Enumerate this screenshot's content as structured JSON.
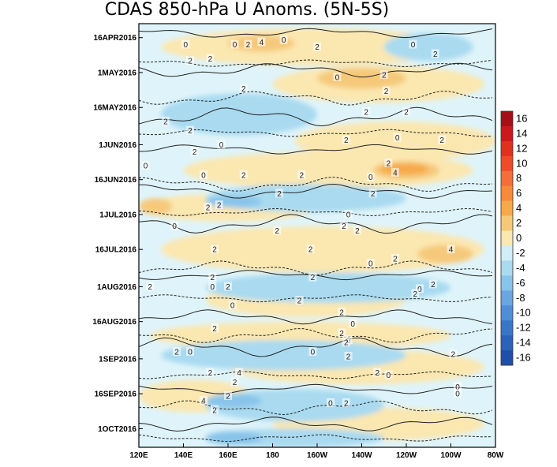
{
  "chart_data": {
    "type": "heatmap",
    "title": "CDAS 850-hPa U Anoms. (5N-5S)",
    "xlabel": "",
    "ylabel": "",
    "x_ticks": [
      "120E",
      "140E",
      "160E",
      "180",
      "160W",
      "140W",
      "120W",
      "100W",
      "80W"
    ],
    "y_ticks": [
      "16APR2016",
      "1MAY2016",
      "16MAY2016",
      "1JUN2016",
      "16JUN2016",
      "1JUL2016",
      "16JUL2016",
      "1AUG2016",
      "16AUG2016",
      "1SEP2016",
      "16SEP2016",
      "1OCT2016"
    ],
    "colorbar": {
      "labels": [
        "16",
        "14",
        "12",
        "10",
        "8",
        "6",
        "4",
        "2",
        "0",
        "-2",
        "-4",
        "-6",
        "-8",
        "-10",
        "-12",
        "-14",
        "-16"
      ],
      "colors": [
        "#a50f15",
        "#cb181d",
        "#e0301e",
        "#ef4a2a",
        "#f46d3b",
        "#f68b3c",
        "#f6a94a",
        "#f6c97a",
        "#fbe7b0",
        "#cfeef7",
        "#a9daf0",
        "#88c4ea",
        "#6aa6df",
        "#4f8ed4",
        "#3a76c6",
        "#2c63b8",
        "#1f4fa6"
      ]
    },
    "contour_labels": [
      {
        "lon": 141,
        "date": "2016-04-19",
        "value": "0"
      },
      {
        "lon": 163,
        "date": "2016-04-19",
        "value": "0"
      },
      {
        "lon": 169,
        "date": "2016-04-19",
        "value": "2"
      },
      {
        "lon": 175,
        "date": "2016-04-18",
        "value": "4"
      },
      {
        "lon": 185,
        "date": "2016-04-17",
        "value": "0"
      },
      {
        "lon": 200,
        "date": "2016-04-20",
        "value": "2"
      },
      {
        "lon": 243,
        "date": "2016-04-19",
        "value": "0"
      },
      {
        "lon": 253,
        "date": "2016-04-23",
        "value": "2"
      },
      {
        "lon": 152,
        "date": "2016-04-25",
        "value": "2"
      },
      {
        "lon": 143,
        "date": "2016-04-26",
        "value": "2"
      },
      {
        "lon": 209,
        "date": "2016-05-03",
        "value": "0"
      },
      {
        "lon": 230,
        "date": "2016-05-02",
        "value": "2"
      },
      {
        "lon": 231,
        "date": "2016-05-09",
        "value": "2"
      },
      {
        "lon": 167,
        "date": "2016-05-08",
        "value": "2"
      },
      {
        "lon": 222,
        "date": "2016-05-18",
        "value": "2"
      },
      {
        "lon": 240,
        "date": "2016-05-18",
        "value": "2"
      },
      {
        "lon": 132,
        "date": "2016-05-22",
        "value": "2"
      },
      {
        "lon": 143,
        "date": "2016-05-26",
        "value": "2"
      },
      {
        "lon": 213,
        "date": "2016-05-30",
        "value": "2"
      },
      {
        "lon": 236,
        "date": "2016-05-29",
        "value": "0"
      },
      {
        "lon": 256,
        "date": "2016-05-30",
        "value": "2"
      },
      {
        "lon": 157,
        "date": "2016-06-01",
        "value": "0"
      },
      {
        "lon": 145,
        "date": "2016-06-04",
        "value": "2"
      },
      {
        "lon": 123,
        "date": "2016-06-10",
        "value": "0"
      },
      {
        "lon": 149,
        "date": "2016-06-14",
        "value": "0"
      },
      {
        "lon": 167,
        "date": "2016-06-14",
        "value": "2"
      },
      {
        "lon": 193,
        "date": "2016-06-14",
        "value": "2"
      },
      {
        "lon": 232,
        "date": "2016-06-09",
        "value": "2"
      },
      {
        "lon": 235,
        "date": "2016-06-13",
        "value": "4"
      },
      {
        "lon": 224,
        "date": "2016-06-15",
        "value": "0"
      },
      {
        "lon": 183,
        "date": "2016-06-22",
        "value": "2"
      },
      {
        "lon": 225,
        "date": "2016-06-22",
        "value": "2"
      },
      {
        "lon": 156,
        "date": "2016-06-27",
        "value": "2"
      },
      {
        "lon": 151,
        "date": "2016-06-28",
        "value": "2"
      },
      {
        "lon": 214,
        "date": "2016-07-01",
        "value": "0"
      },
      {
        "lon": 136,
        "date": "2016-07-06",
        "value": "0"
      },
      {
        "lon": 182,
        "date": "2016-07-08",
        "value": "2"
      },
      {
        "lon": 212,
        "date": "2016-07-06",
        "value": "2"
      },
      {
        "lon": 218,
        "date": "2016-07-08",
        "value": "2"
      },
      {
        "lon": 154,
        "date": "2016-07-16",
        "value": "2"
      },
      {
        "lon": 197,
        "date": "2016-07-16",
        "value": "2"
      },
      {
        "lon": 224,
        "date": "2016-07-22",
        "value": "0"
      },
      {
        "lon": 235,
        "date": "2016-07-20",
        "value": "2"
      },
      {
        "lon": 260,
        "date": "2016-07-16",
        "value": "4"
      },
      {
        "lon": 153,
        "date": "2016-07-28",
        "value": "2"
      },
      {
        "lon": 198,
        "date": "2016-07-28",
        "value": "2"
      },
      {
        "lon": 125,
        "date": "2016-08-01",
        "value": "2"
      },
      {
        "lon": 153,
        "date": "2016-08-01",
        "value": "0"
      },
      {
        "lon": 160,
        "date": "2016-08-01",
        "value": "2"
      },
      {
        "lon": 246,
        "date": "2016-08-02",
        "value": "0"
      },
      {
        "lon": 252,
        "date": "2016-07-31",
        "value": "2"
      },
      {
        "lon": 192,
        "date": "2016-08-07",
        "value": "2"
      },
      {
        "lon": 244,
        "date": "2016-08-04",
        "value": "2"
      },
      {
        "lon": 162,
        "date": "2016-08-09",
        "value": "0"
      },
      {
        "lon": 211,
        "date": "2016-08-12",
        "value": "2"
      },
      {
        "lon": 216,
        "date": "2016-08-17",
        "value": "0"
      },
      {
        "lon": 154,
        "date": "2016-08-19",
        "value": "2"
      },
      {
        "lon": 211,
        "date": "2016-08-21",
        "value": "2"
      },
      {
        "lon": 214,
        "date": "2016-08-24",
        "value": "0"
      },
      {
        "lon": 213,
        "date": "2016-08-25",
        "value": "2"
      },
      {
        "lon": 137,
        "date": "2016-08-29",
        "value": "2"
      },
      {
        "lon": 143,
        "date": "2016-08-29",
        "value": "0"
      },
      {
        "lon": 198,
        "date": "2016-08-29",
        "value": "0"
      },
      {
        "lon": 214,
        "date": "2016-08-31",
        "value": "2"
      },
      {
        "lon": 261,
        "date": "2016-08-30",
        "value": "2"
      },
      {
        "lon": 152,
        "date": "2016-09-07",
        "value": "2"
      },
      {
        "lon": 165,
        "date": "2016-09-07",
        "value": "4"
      },
      {
        "lon": 227,
        "date": "2016-09-07",
        "value": "2"
      },
      {
        "lon": 232,
        "date": "2016-09-08",
        "value": "0"
      },
      {
        "lon": 163,
        "date": "2016-09-11",
        "value": "2"
      },
      {
        "lon": 263,
        "date": "2016-09-13",
        "value": "0"
      },
      {
        "lon": 160,
        "date": "2016-09-17",
        "value": "2"
      },
      {
        "lon": 149,
        "date": "2016-09-19",
        "value": "4"
      },
      {
        "lon": 206,
        "date": "2016-09-20",
        "value": "0"
      },
      {
        "lon": 213,
        "date": "2016-09-20",
        "value": "2"
      },
      {
        "lon": 263,
        "date": "2016-09-16",
        "value": "0"
      },
      {
        "lon": 154,
        "date": "2016-09-23",
        "value": "2"
      }
    ]
  }
}
